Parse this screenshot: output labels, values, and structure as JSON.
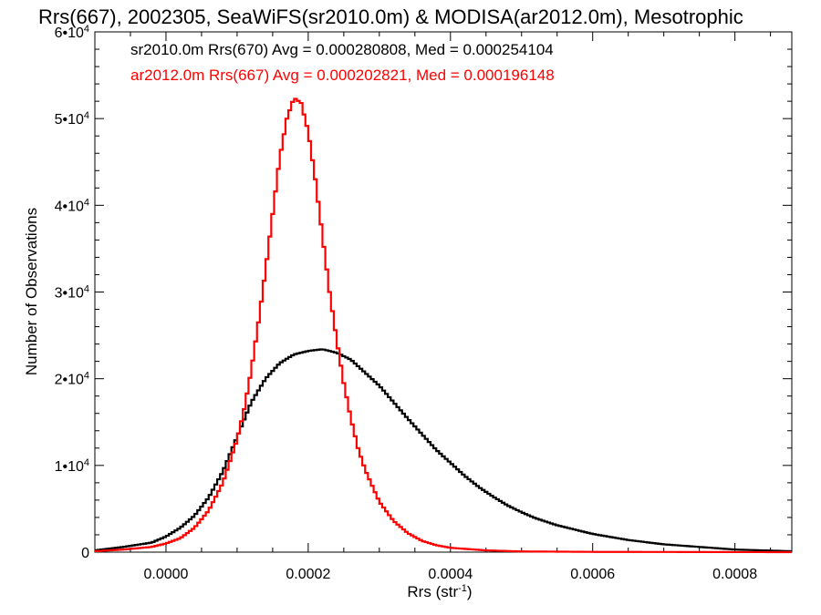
{
  "chart_data": {
    "type": "histogram",
    "title": "Rrs(667), 2002305, SeaWiFS(sr2010.0m) & MODISA(ar2012.0m), Mesotrophic",
    "xlabel": "Rrs (str",
    "xlabel_sup": "-1",
    "xlabel_close": ")",
    "ylabel": "Number of Observations",
    "xlim": [
      -0.0001,
      0.00088
    ],
    "ylim": [
      0,
      60000
    ],
    "x_ticks": [
      0.0,
      0.0002,
      0.0004,
      0.0006,
      0.0008
    ],
    "x_tick_labels": [
      "0.0000",
      "0.0002",
      "0.0004",
      "0.0006",
      "0.0008"
    ],
    "y_ticks": [
      0,
      10000,
      20000,
      30000,
      40000,
      50000,
      60000
    ],
    "y_tick_labels": [
      {
        "base": "0",
        "exp": ""
      },
      {
        "base": "1•10",
        "exp": "4"
      },
      {
        "base": "2•10",
        "exp": "4"
      },
      {
        "base": "3•10",
        "exp": "4"
      },
      {
        "base": "4•10",
        "exp": "4"
      },
      {
        "base": "5•10",
        "exp": "4"
      },
      {
        "base": "6•10",
        "exp": "4"
      }
    ],
    "grid": false,
    "legend_position": "top-left",
    "series": [
      {
        "name": "sr2010.0m Rrs(670) Avg = 0.000280808, Med = 0.000254104",
        "color": "#000000",
        "x": [
          -0.0001,
          -6e-05,
          -2e-05,
          0.0,
          2e-05,
          4e-05,
          6e-05,
          8e-05,
          0.0001,
          0.00012,
          0.00014,
          0.00016,
          0.00018,
          0.0002,
          0.00022,
          0.00024,
          0.00026,
          0.00028,
          0.0003,
          0.00032,
          0.00034,
          0.00036,
          0.00038,
          0.0004,
          0.00042,
          0.00044,
          0.00046,
          0.00048,
          0.0005,
          0.00052,
          0.00055,
          0.0006,
          0.00065,
          0.0007,
          0.00075,
          0.0008,
          0.00088
        ],
        "y": [
          200,
          600,
          1100,
          1800,
          2800,
          4200,
          6300,
          9300,
          13300,
          17300,
          20000,
          21800,
          22800,
          23200,
          23400,
          23000,
          22200,
          20700,
          19200,
          17300,
          15400,
          13600,
          11800,
          10300,
          8800,
          7500,
          6400,
          5400,
          4600,
          3900,
          3100,
          2100,
          1400,
          900,
          600,
          300,
          100
        ]
      },
      {
        "name": "ar2012.0m Rrs(667) Avg = 0.000202821, Med = 0.000196148",
        "color": "#ff0000",
        "x": [
          -0.0001,
          -6e-05,
          -2e-05,
          0.0,
          2e-05,
          4e-05,
          6e-05,
          8e-05,
          0.0001,
          0.00011,
          0.00012,
          0.00013,
          0.00014,
          0.00015,
          0.00016,
          0.00017,
          0.00018,
          0.00019,
          0.0002,
          0.00021,
          0.00022,
          0.00023,
          0.00024,
          0.00025,
          0.00026,
          0.00027,
          0.00028,
          0.0003,
          0.00032,
          0.00034,
          0.00036,
          0.00038,
          0.0004,
          0.00045,
          0.0005,
          0.0006,
          0.00088
        ],
        "y": [
          100,
          300,
          600,
          1000,
          1600,
          2800,
          4800,
          8000,
          13000,
          16500,
          21000,
          26500,
          32500,
          39000,
          45500,
          50000,
          52400,
          51800,
          48500,
          43000,
          36500,
          30000,
          24500,
          19500,
          15400,
          12000,
          9500,
          5800,
          3600,
          2200,
          1300,
          800,
          500,
          200,
          80,
          30,
          0
        ]
      }
    ]
  }
}
